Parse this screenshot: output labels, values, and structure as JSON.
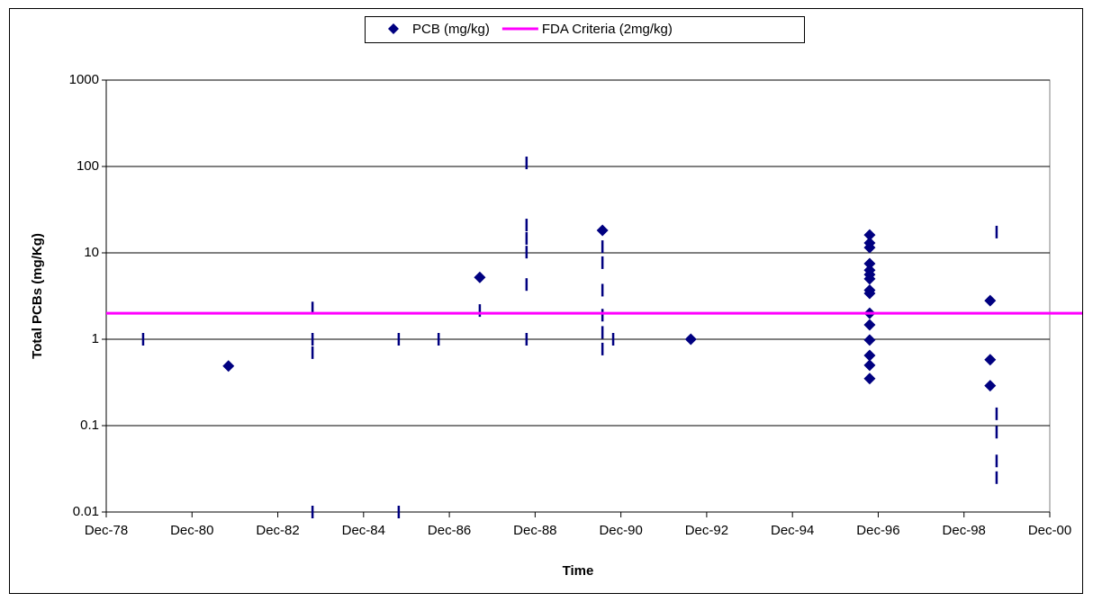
{
  "chart_data": {
    "type": "scatter",
    "x_title": "Time",
    "y_title": "Total PCBs (mg/Kg)",
    "log_y": true,
    "grid": true,
    "legend": "top",
    "xlim": [
      1978.92,
      2000.92
    ],
    "xticks": [
      {
        "value": 1978.92,
        "label": "Dec-78"
      },
      {
        "value": 1980.92,
        "label": "Dec-80"
      },
      {
        "value": 1982.92,
        "label": "Dec-82"
      },
      {
        "value": 1984.92,
        "label": "Dec-84"
      },
      {
        "value": 1986.92,
        "label": "Dec-86"
      },
      {
        "value": 1988.92,
        "label": "Dec-88"
      },
      {
        "value": 1990.92,
        "label": "Dec-90"
      },
      {
        "value": 1992.92,
        "label": "Dec-92"
      },
      {
        "value": 1994.92,
        "label": "Dec-94"
      },
      {
        "value": 1996.92,
        "label": "Dec-96"
      },
      {
        "value": 1998.92,
        "label": "Dec-98"
      },
      {
        "value": 2000.92,
        "label": "Dec-00"
      }
    ],
    "ylim": [
      0.01,
      1000
    ],
    "yticks": [
      0.01,
      0.1,
      1,
      10,
      100,
      1000
    ],
    "series": [
      {
        "name": "PCB (mg/kg)",
        "color": "#000080",
        "x": [
          1979.78,
          1981.77,
          1983.73,
          1983.73,
          1983.73,
          1983.73,
          1985.74,
          1985.74,
          1986.67,
          1987.63,
          1987.63,
          1988.72,
          1988.72,
          1988.72,
          1988.72,
          1988.72,
          1988.72,
          1990.49,
          1990.49,
          1990.49,
          1990.49,
          1990.49,
          1990.49,
          1990.49,
          1990.74,
          1992.55,
          1996.72,
          1996.72,
          1996.72,
          1996.72,
          1996.72,
          1996.72,
          1996.72,
          1996.72,
          1996.72,
          1996.72,
          1996.72,
          1996.72,
          1996.72,
          1996.72,
          1996.72,
          1999.53,
          1999.53,
          1999.53,
          1999.68,
          1999.68,
          1999.68,
          1999.68,
          1999.68
        ],
        "values": [
          1,
          0.49,
          2.3,
          1,
          0.7,
          0.01,
          1,
          0.01,
          1,
          5.2,
          2.15,
          110,
          21,
          14.7,
          10.2,
          4.3,
          1,
          18.2,
          11.8,
          7.7,
          3.7,
          1.9,
          1.2,
          0.77,
          1,
          1,
          16.1,
          13,
          11.5,
          7.5,
          6.3,
          5.6,
          5,
          3.7,
          3.4,
          2,
          1.47,
          0.98,
          0.65,
          0.5,
          0.35,
          2.8,
          0.58,
          0.29,
          17.4,
          0.137,
          0.084,
          0.039,
          0.025
        ],
        "markers": [
          "dash",
          "diamond",
          "dash",
          "dash",
          "dash",
          "dash",
          "dash",
          "dash",
          "dash",
          "diamond",
          "dash",
          "dash",
          "dash",
          "dash",
          "dash",
          "dash",
          "dash",
          "diamond",
          "dash",
          "dash",
          "dash",
          "dash",
          "dash",
          "dash",
          "dash",
          "diamond",
          "diamond",
          "diamond",
          "diamond",
          "diamond",
          "diamond",
          "diamond",
          "diamond",
          "diamond",
          "diamond",
          "diamond",
          "diamond",
          "diamond",
          "diamond",
          "diamond",
          "diamond",
          "diamond",
          "diamond",
          "diamond",
          "dash",
          "dash",
          "dash",
          "dash",
          "dash"
        ]
      },
      {
        "name": "FDA Criteria (2mg/kg)",
        "color": "#ff00ff",
        "kind": "hline",
        "values": [
          2
        ]
      }
    ]
  }
}
